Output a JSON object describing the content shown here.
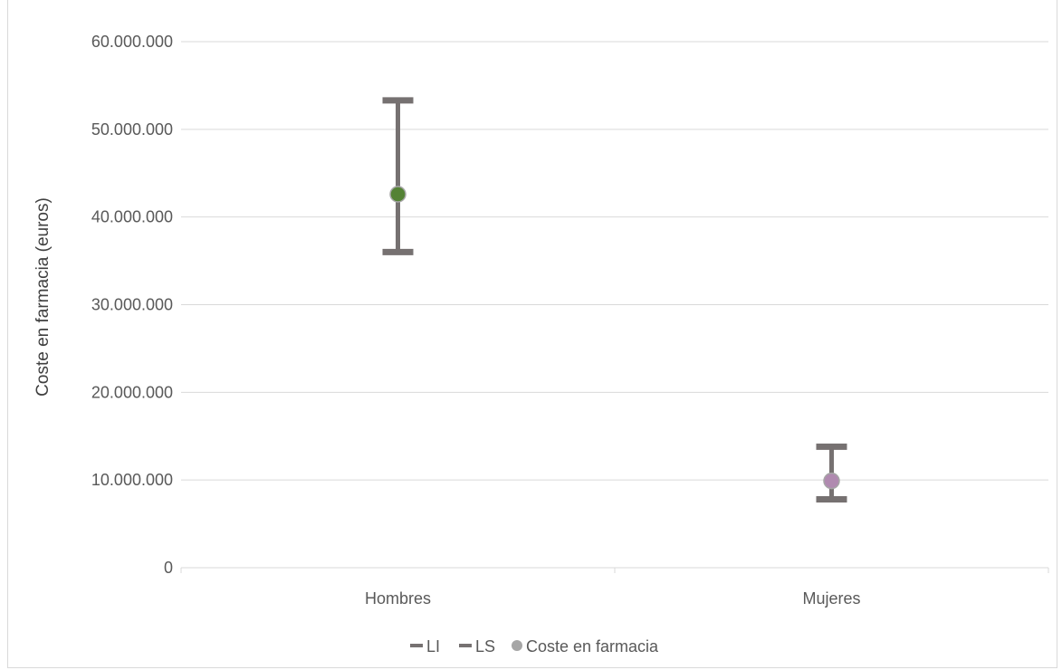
{
  "chart_data": {
    "type": "scatter",
    "title": "",
    "ylabel": "Coste en farmacia (euros)",
    "xlabel": "",
    "categories": [
      "Hombres",
      "Mujeres"
    ],
    "ylim": [
      0,
      60000000
    ],
    "yticks": [
      0,
      10000000,
      20000000,
      30000000,
      40000000,
      50000000,
      60000000
    ],
    "ytick_labels": [
      "0",
      "10.000.000",
      "20.000.000",
      "30.000.000",
      "40.000.000",
      "50.000.000",
      "60.000.000"
    ],
    "grid": true,
    "legend_position": "bottom",
    "series": [
      {
        "name": "LI",
        "values": [
          36000000,
          7800000
        ],
        "color": "#767171"
      },
      {
        "name": "LS",
        "values": [
          53300000,
          13800000
        ],
        "color": "#767171"
      },
      {
        "name": "Coste en farmacia",
        "values": [
          42600000,
          9900000
        ],
        "color": "#a6a6a6",
        "point_colors": [
          "#548235",
          "#b08ab0"
        ]
      }
    ]
  }
}
